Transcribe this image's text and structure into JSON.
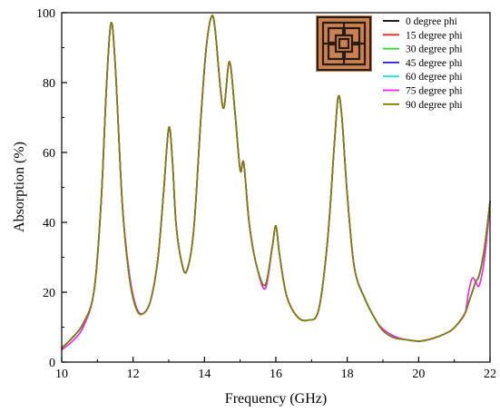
{
  "chart_data": {
    "type": "line",
    "xlabel": "Frequency (GHz)",
    "ylabel": "Absorption (%)",
    "xlim": [
      10,
      22
    ],
    "ylim": [
      0,
      100
    ],
    "xticks": [
      10,
      12,
      14,
      16,
      18,
      20,
      22
    ],
    "yticks": [
      0,
      20,
      40,
      60,
      80,
      100
    ],
    "grid": false,
    "legend_position": "top-right",
    "inset_image": "metamaterial-unit-cell-photo",
    "x": [
      10.0,
      10.3,
      10.6,
      10.9,
      11.1,
      11.25,
      11.38,
      11.5,
      11.7,
      11.9,
      12.1,
      12.3,
      12.5,
      12.7,
      12.85,
      13.0,
      13.1,
      13.2,
      13.35,
      13.5,
      13.7,
      13.9,
      14.05,
      14.2,
      14.3,
      14.45,
      14.55,
      14.7,
      14.85,
      15.0,
      15.1,
      15.25,
      15.45,
      15.7,
      15.9,
      16.0,
      16.1,
      16.3,
      16.6,
      16.9,
      17.2,
      17.45,
      17.65,
      17.75,
      17.85,
      18.0,
      18.2,
      18.5,
      18.8,
      19.0,
      19.3,
      19.6,
      20.0,
      20.3,
      20.6,
      20.9,
      21.1,
      21.3,
      21.4,
      21.5,
      21.6,
      21.7,
      21.85,
      22.0
    ],
    "series": [
      {
        "name": "0 degree phi",
        "color": "#000000",
        "y": [
          4,
          7,
          11,
          20,
          45,
          78,
          97,
          85,
          45,
          24,
          15,
          14,
          18,
          30,
          48,
          67,
          58,
          40,
          29,
          26,
          38,
          70,
          90,
          99,
          95,
          78,
          73,
          86,
          72,
          55,
          57,
          40,
          28,
          22,
          33,
          39,
          31,
          19,
          13,
          12,
          15,
          35,
          64,
          76,
          70,
          48,
          27,
          18,
          12,
          9,
          7,
          6.5,
          6,
          6.5,
          7.5,
          9,
          11,
          14,
          17,
          20,
          23,
          25,
          33,
          46
        ]
      },
      {
        "name": "15 degree phi",
        "color": "#ff2020",
        "y": [
          4,
          7,
          11,
          20,
          45,
          78,
          97,
          85,
          45,
          24,
          15,
          14,
          18,
          30,
          48,
          67,
          58,
          40,
          29,
          26,
          38,
          70,
          90,
          99,
          95,
          78,
          73,
          86,
          72,
          55,
          57,
          40,
          28,
          22,
          33,
          39,
          31,
          19,
          13,
          12,
          15,
          35,
          64,
          76,
          70,
          48,
          27,
          18,
          12,
          9,
          7,
          6.5,
          6,
          6.5,
          7.5,
          9,
          11,
          14,
          17,
          20,
          23,
          25,
          33,
          46
        ]
      },
      {
        "name": "30 degree phi",
        "color": "#22dd22",
        "y": [
          4,
          7,
          11,
          20,
          45,
          78,
          97,
          85,
          45,
          24,
          15,
          14,
          18,
          30,
          48,
          67,
          58,
          40,
          29,
          26,
          38,
          70,
          90,
          99,
          95,
          78,
          73,
          86,
          72,
          55,
          57,
          40,
          28,
          22,
          33,
          39,
          31,
          19,
          13,
          12,
          15,
          35,
          64,
          76,
          70,
          48,
          27,
          18,
          12,
          9,
          7,
          6.5,
          6,
          6.5,
          7.5,
          9,
          11,
          14,
          17,
          20,
          23,
          25,
          33,
          46
        ]
      },
      {
        "name": "45 degree phi",
        "color": "#2020cc",
        "y": [
          4,
          7,
          11,
          20,
          45,
          78,
          97,
          85,
          45,
          24,
          15,
          14,
          18,
          30,
          48,
          67,
          58,
          40,
          29,
          26,
          38,
          70,
          90,
          99,
          95,
          78,
          73,
          86,
          72,
          55,
          57,
          40,
          28,
          22,
          33,
          39,
          31,
          19,
          13,
          12,
          15,
          35,
          64,
          76,
          70,
          48,
          27,
          18,
          12,
          9,
          7,
          6.5,
          6,
          6.5,
          7.5,
          9,
          11,
          14,
          17,
          20,
          23,
          25,
          33,
          46
        ]
      },
      {
        "name": "60 degree phi",
        "color": "#22dddd",
        "y": [
          4,
          7,
          11,
          20,
          45,
          78,
          97,
          85,
          45,
          24,
          15,
          14,
          18,
          30,
          48,
          67,
          58,
          40,
          29,
          26,
          38,
          70,
          90,
          99,
          95,
          78,
          73,
          86,
          72,
          55,
          57,
          40,
          28,
          22,
          33,
          39,
          31,
          19,
          13,
          12,
          15,
          35,
          64,
          76,
          70,
          48,
          27,
          18,
          12,
          9,
          7,
          6.5,
          6,
          6.5,
          7.5,
          9,
          11,
          14,
          17,
          20,
          23,
          25,
          33,
          46
        ]
      },
      {
        "name": "75 degree phi",
        "color": "#ee22ee",
        "y": [
          3.5,
          6,
          10,
          20,
          45,
          78,
          97,
          85,
          45,
          25,
          15.5,
          14,
          18,
          30,
          48,
          67,
          58,
          40,
          29,
          26,
          38,
          70,
          90,
          99,
          95,
          78,
          73,
          86,
          72,
          55,
          57,
          40,
          28,
          21,
          33,
          39,
          31,
          19,
          13,
          12,
          15,
          35,
          64,
          76,
          70,
          48,
          27,
          18,
          12,
          9.5,
          7.5,
          6.5,
          6,
          6.5,
          7.5,
          9,
          11,
          14,
          20,
          24,
          23,
          22,
          30,
          45
        ]
      },
      {
        "name": "90 degree phi",
        "color": "#808000",
        "y": [
          4,
          7,
          11,
          20,
          45,
          78,
          97,
          85,
          45,
          24,
          15,
          14,
          18,
          30,
          48,
          67,
          58,
          40,
          29,
          26,
          38,
          70,
          90,
          99,
          95,
          78,
          73,
          86,
          72,
          55,
          57,
          40,
          28,
          22,
          33,
          39,
          31,
          19,
          13,
          12,
          15,
          35,
          64,
          76,
          70,
          48,
          27,
          18,
          12,
          9,
          7,
          6.5,
          6,
          6.5,
          7.5,
          9,
          11,
          14,
          17,
          20,
          23,
          25,
          33,
          46
        ]
      }
    ]
  }
}
